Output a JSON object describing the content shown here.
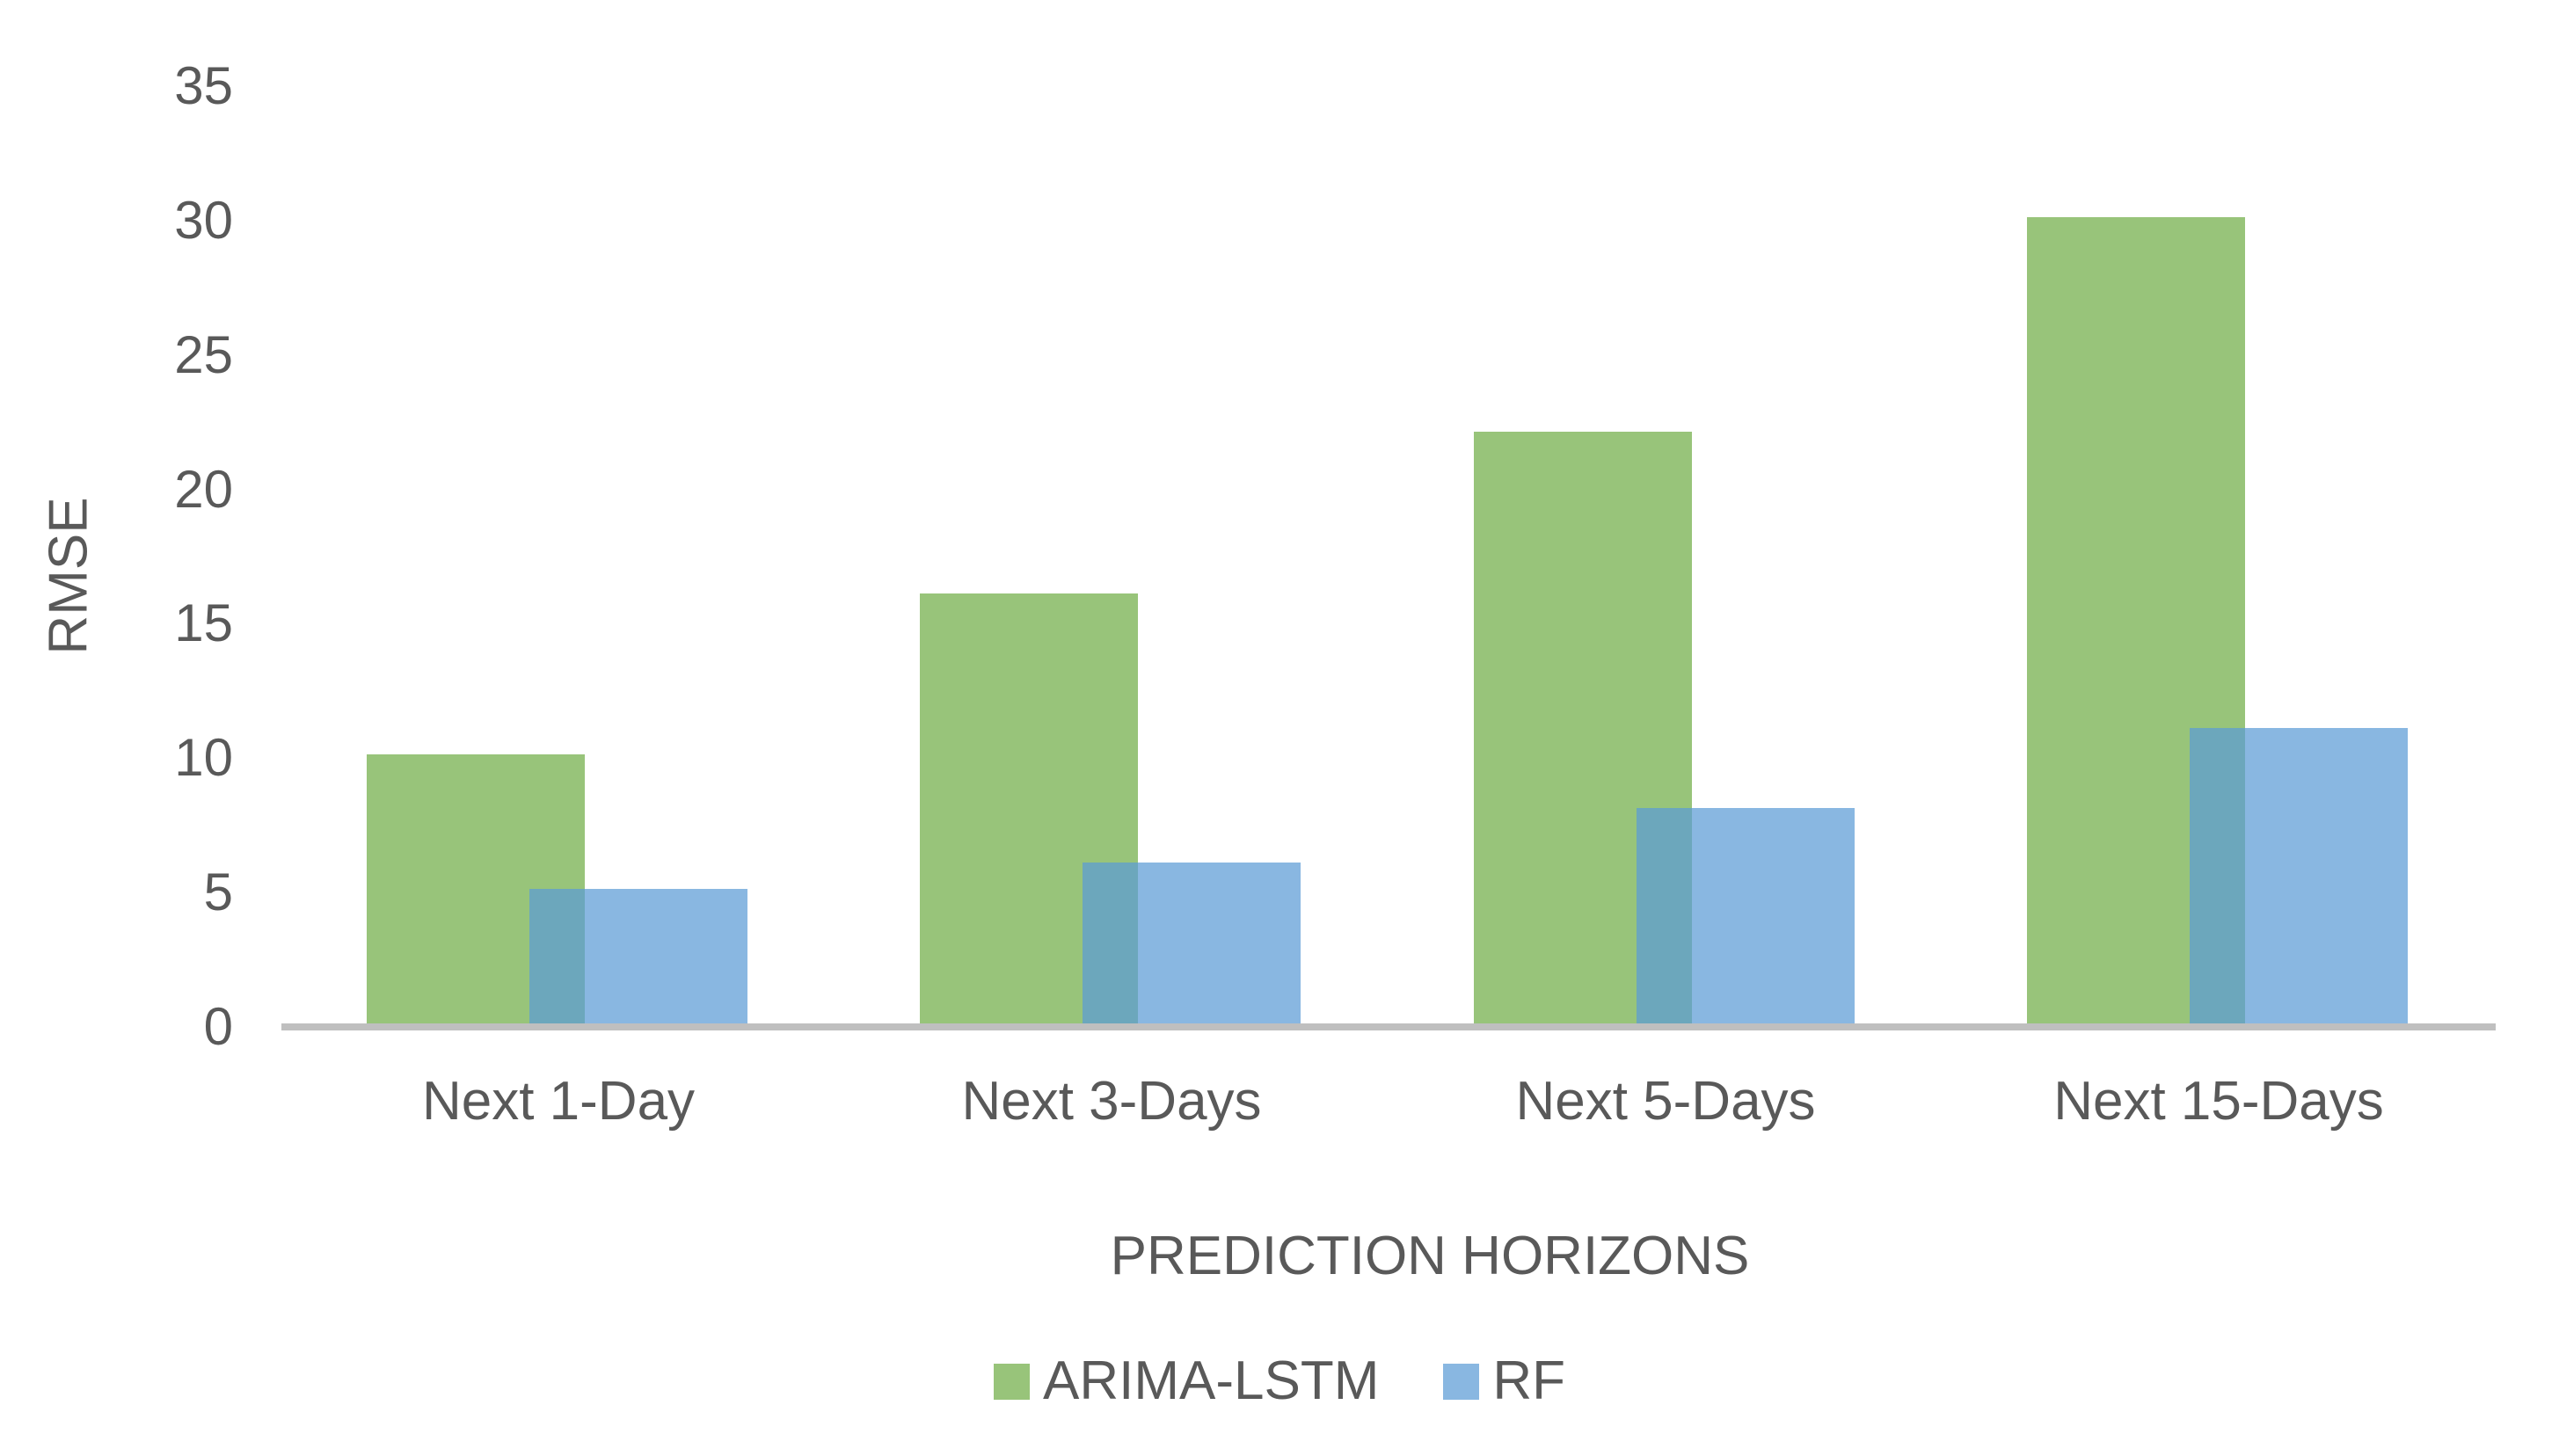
{
  "chart_data": {
    "type": "bar",
    "title": "",
    "categories": [
      "Next 1-Day",
      "Next 3-Days",
      "Next 5-Days",
      "Next 15-Days"
    ],
    "series": [
      {
        "name": "ARIMA-LSTM",
        "color": "#70AD47",
        "opacity": 0.72,
        "values": [
          10,
          16,
          22,
          30
        ]
      },
      {
        "name": "RF",
        "color": "#5B9BD5",
        "opacity": 0.72,
        "values": [
          5,
          6,
          8,
          11
        ]
      }
    ],
    "xlabel": "PREDICTION HORIZONS",
    "ylabel": "RMSE",
    "ylim": [
      0,
      35
    ],
    "yticks": [
      0,
      5,
      10,
      15,
      20,
      25,
      30,
      35
    ],
    "grid": false,
    "legend_position": "bottom",
    "bars_overlap": true,
    "axis_line_color": "#BFBFBF",
    "text_color": "#595959"
  }
}
